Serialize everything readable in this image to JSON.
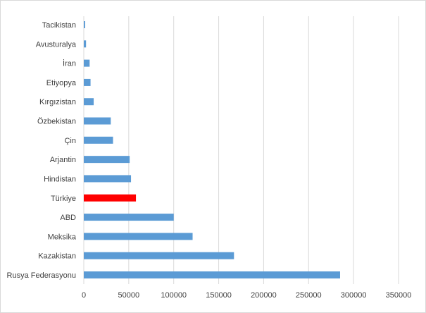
{
  "chart_data": {
    "type": "bar",
    "orientation": "horizontal",
    "categories": [
      "Tacikistan",
      "Avusturalya",
      "İran",
      "Etiyopya",
      "Kırgızistan",
      "Özbekistan",
      "Çin",
      "Arjantin",
      "Hindistan",
      "Türkiye",
      "ABD",
      "Meksika",
      "Kazakistan",
      "Rusya Federasyonu"
    ],
    "values": [
      1500,
      2500,
      6500,
      7500,
      11000,
      30000,
      32500,
      51000,
      52500,
      58000,
      100000,
      121000,
      167000,
      285000
    ],
    "bar_colors": [
      "#5b9bd5",
      "#5b9bd5",
      "#5b9bd5",
      "#5b9bd5",
      "#5b9bd5",
      "#5b9bd5",
      "#5b9bd5",
      "#5b9bd5",
      "#5b9bd5",
      "#ff0000",
      "#5b9bd5",
      "#5b9bd5",
      "#5b9bd5",
      "#5b9bd5"
    ],
    "x_ticks": [
      "0",
      "50000",
      "100000",
      "150000",
      "200000",
      "250000",
      "300000",
      "350000"
    ],
    "xlim": [
      0,
      350000
    ],
    "grid": true,
    "title": "",
    "xlabel": "",
    "ylabel": ""
  }
}
